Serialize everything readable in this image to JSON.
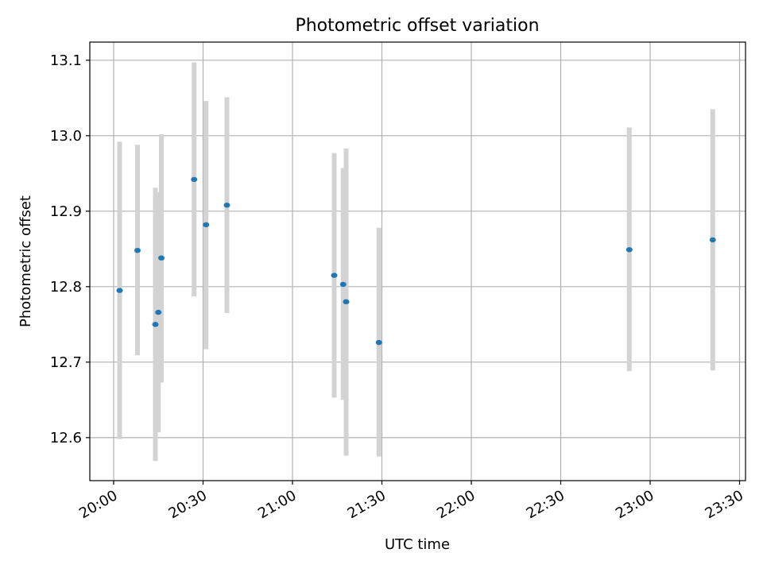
{
  "chart_data": {
    "type": "scatter",
    "title": "Photometric offset variation",
    "xlabel": "UTC time",
    "ylabel": "Photometric offset",
    "x_ticks": [
      "20:00",
      "20:30",
      "21:00",
      "21:30",
      "22:00",
      "22:30",
      "23:00",
      "23:30"
    ],
    "y_ticks": [
      "12.6",
      "12.7",
      "12.8",
      "12.9",
      "13.0",
      "13.1"
    ],
    "xlim": [
      "19:52",
      "23:32"
    ],
    "ylim": [
      12.543,
      13.124
    ],
    "grid": true,
    "errorbar_color": "#d3d3d3",
    "marker_color": "#1f77b4",
    "points": [
      {
        "t": "20:02",
        "y": 12.795,
        "ylo": 12.598,
        "yhi": 12.992
      },
      {
        "t": "20:08",
        "y": 12.848,
        "ylo": 12.709,
        "yhi": 12.988
      },
      {
        "t": "20:14",
        "y": 12.75,
        "ylo": 12.569,
        "yhi": 12.931
      },
      {
        "t": "20:15",
        "y": 12.766,
        "ylo": 12.607,
        "yhi": 12.925
      },
      {
        "t": "20:16",
        "y": 12.838,
        "ylo": 12.673,
        "yhi": 13.002
      },
      {
        "t": "20:27",
        "y": 12.942,
        "ylo": 12.787,
        "yhi": 13.097
      },
      {
        "t": "20:31",
        "y": 12.882,
        "ylo": 12.717,
        "yhi": 13.046
      },
      {
        "t": "20:38",
        "y": 12.908,
        "ylo": 12.765,
        "yhi": 13.051
      },
      {
        "t": "21:14",
        "y": 12.815,
        "ylo": 12.653,
        "yhi": 12.977
      },
      {
        "t": "21:17",
        "y": 12.803,
        "ylo": 12.65,
        "yhi": 12.957
      },
      {
        "t": "21:18",
        "y": 12.78,
        "ylo": 12.576,
        "yhi": 12.983
      },
      {
        "t": "21:29",
        "y": 12.726,
        "ylo": 12.575,
        "yhi": 12.878
      },
      {
        "t": "22:53",
        "y": 12.849,
        "ylo": 12.688,
        "yhi": 13.011
      },
      {
        "t": "23:21",
        "y": 12.862,
        "ylo": 12.689,
        "yhi": 13.035
      }
    ]
  }
}
